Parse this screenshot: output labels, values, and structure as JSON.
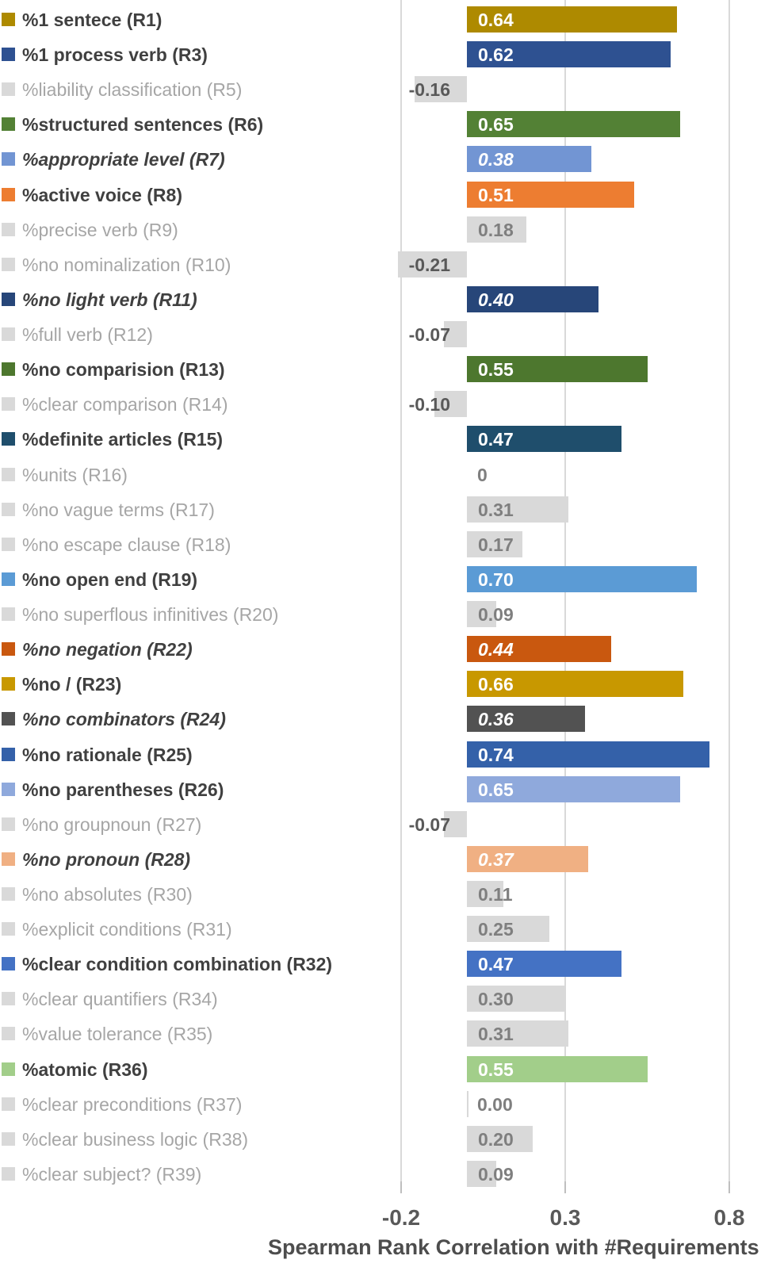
{
  "chart_data": {
    "type": "bar",
    "orientation": "horizontal",
    "title": "",
    "xlabel": "Spearman Rank Correlation with #Requirements",
    "x_ticks": [
      -0.2,
      0.3,
      0.8
    ],
    "x_tick_labels": [
      "-0.2",
      "0.3",
      "0.8"
    ],
    "xlim": [
      -0.26,
      0.9
    ],
    "grid": "vertical-only",
    "zero_baseline": 0,
    "gray_bar_color": "#D9D9D9",
    "rows": [
      {
        "label": "%1 sentece (R1)",
        "value": 0.64,
        "display": "0.64",
        "color": "#AE8A00",
        "style": "bold"
      },
      {
        "label": "%1 process verb (R3)",
        "value": 0.62,
        "display": "0.62",
        "color": "#2E5191",
        "style": "bold"
      },
      {
        "label": "%liability classification (R5)",
        "value": -0.16,
        "display": "-0.16",
        "color": "#D9D9D9",
        "style": "gray"
      },
      {
        "label": "%structured sentences (R6)",
        "value": 0.65,
        "display": "0.65",
        "color": "#538135",
        "style": "bold"
      },
      {
        "label": "%appropriate level (R7)",
        "value": 0.38,
        "display": "0.38",
        "color": "#7295D3",
        "style": "bold-italic"
      },
      {
        "label": "%active voice (R8)",
        "value": 0.51,
        "display": "0.51",
        "color": "#ED7D31",
        "style": "bold"
      },
      {
        "label": "%precise verb (R9)",
        "value": 0.18,
        "display": "0.18",
        "color": "#D9D9D9",
        "style": "gray"
      },
      {
        "label": "%no nominalization (R10)",
        "value": -0.21,
        "display": "-0.21",
        "color": "#D9D9D9",
        "style": "gray"
      },
      {
        "label": "%no light verb (R11)",
        "value": 0.4,
        "display": "0.40",
        "color": "#274679",
        "style": "bold-italic"
      },
      {
        "label": "%full verb (R12)",
        "value": -0.07,
        "display": "-0.07",
        "color": "#D9D9D9",
        "style": "gray"
      },
      {
        "label": "%no comparision (R13)",
        "value": 0.55,
        "display": "0.55",
        "color": "#4D772E",
        "style": "bold"
      },
      {
        "label": "%clear comparison (R14)",
        "value": -0.1,
        "display": "-0.10",
        "color": "#D9D9D9",
        "style": "gray"
      },
      {
        "label": "%definite articles (R15)",
        "value": 0.47,
        "display": "0.47",
        "color": "#1F4E6C",
        "style": "bold"
      },
      {
        "label": "%units (R16)",
        "value": 0,
        "display": "0",
        "color": "#D9D9D9",
        "style": "gray"
      },
      {
        "label": "%no vague terms (R17)",
        "value": 0.31,
        "display": "0.31",
        "color": "#D9D9D9",
        "style": "gray"
      },
      {
        "label": "%no escape clause (R18)",
        "value": 0.17,
        "display": "0.17",
        "color": "#D9D9D9",
        "style": "gray"
      },
      {
        "label": "%no open end (R19)",
        "value": 0.7,
        "display": "0.70",
        "color": "#5B9BD5",
        "style": "bold"
      },
      {
        "label": "%no superflous infinitives (R20)",
        "value": 0.09,
        "display": "0.09",
        "color": "#D9D9D9",
        "style": "gray"
      },
      {
        "label": "%no negation (R22)",
        "value": 0.44,
        "display": "0.44",
        "color": "#C9580F",
        "style": "bold-italic"
      },
      {
        "label": "%no / (R23)",
        "value": 0.66,
        "display": "0.66",
        "color": "#C89800",
        "style": "bold"
      },
      {
        "label": "%no combinators (R24)",
        "value": 0.36,
        "display": "0.36",
        "color": "#525252",
        "style": "bold-italic"
      },
      {
        "label": "%no rationale (R25)",
        "value": 0.74,
        "display": "0.74",
        "color": "#3461A9",
        "style": "bold"
      },
      {
        "label": "%no parentheses (R26)",
        "value": 0.65,
        "display": "0.65",
        "color": "#8FA9DC",
        "style": "bold"
      },
      {
        "label": "%no groupnoun (R27)",
        "value": -0.07,
        "display": "-0.07",
        "color": "#D9D9D9",
        "style": "gray"
      },
      {
        "label": "%no pronoun (R28)",
        "value": 0.37,
        "display": "0.37",
        "color": "#F0B083",
        "style": "bold-italic"
      },
      {
        "label": "%no absolutes (R30)",
        "value": 0.11,
        "display": "0.11",
        "color": "#D9D9D9",
        "style": "gray"
      },
      {
        "label": "%explicit conditions (R31)",
        "value": 0.25,
        "display": "0.25",
        "color": "#D9D9D9",
        "style": "gray"
      },
      {
        "label": "%clear condition combination (R32)",
        "value": 0.47,
        "display": "0.47",
        "color": "#4472C4",
        "style": "bold"
      },
      {
        "label": "%clear quantifiers (R34)",
        "value": 0.3,
        "display": "0.30",
        "color": "#D9D9D9",
        "style": "gray"
      },
      {
        "label": "%value tolerance (R35)",
        "value": 0.31,
        "display": "0.31",
        "color": "#D9D9D9",
        "style": "gray"
      },
      {
        "label": "%atomic (R36)",
        "value": 0.55,
        "display": "0.55",
        "color": "#A2CE8A",
        "style": "bold"
      },
      {
        "label": "%clear preconditions (R37)",
        "value": 0.0,
        "display": "0.00",
        "color": "#D9D9D9",
        "style": "gray"
      },
      {
        "label": "%clear business logic (R38)",
        "value": 0.2,
        "display": "0.20",
        "color": "#D9D9D9",
        "style": "gray"
      },
      {
        "label": "%clear subject? (R39)",
        "value": 0.09,
        "display": "0.09",
        "color": "#D9D9D9",
        "style": "gray"
      }
    ]
  }
}
